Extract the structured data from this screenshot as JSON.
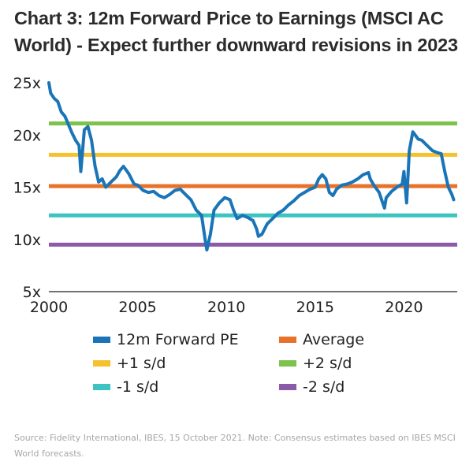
{
  "title": "Chart 3: 12m Forward Price to Earnings (MSCI AC World) - Expect further downward revisions in 2023",
  "source": "Source: Fidelity International, IBES, 15 October 2021. Note: Consensus estimates based on IBES MSCI World forecasts.",
  "chart_data": {
    "type": "line",
    "title": "Chart 3: 12m Forward Price to Earnings (MSCI AC World) - Expect further downward revisions in 2023",
    "xlabel": "",
    "ylabel": "",
    "xlim": [
      2000,
      2023
    ],
    "ylim": [
      5,
      25
    ],
    "x_ticks": [
      2000,
      2005,
      2010,
      2015,
      2020
    ],
    "x_tick_labels": [
      "2000",
      "2005",
      "2010",
      "2015",
      "2020"
    ],
    "y_ticks": [
      5,
      10,
      15,
      20,
      25
    ],
    "y_tick_labels": [
      "5x",
      "10x",
      "15x",
      "20x",
      "25x"
    ],
    "grid": false,
    "legend_position": "bottom",
    "series": [
      {
        "name": "12m Forward PE",
        "color": "#1a75b8",
        "x": [
          2000.0,
          2000.1,
          2000.3,
          2000.5,
          2000.7,
          2000.9,
          2001.1,
          2001.3,
          2001.5,
          2001.7,
          2001.8,
          2002.0,
          2002.2,
          2002.4,
          2002.6,
          2002.8,
          2003.0,
          2003.2,
          2003.5,
          2003.8,
          2004.0,
          2004.2,
          2004.5,
          2004.8,
          2005.0,
          2005.3,
          2005.6,
          2005.9,
          2006.2,
          2006.5,
          2006.8,
          2007.1,
          2007.4,
          2007.7,
          2008.0,
          2008.3,
          2008.6,
          2008.8,
          2008.9,
          2009.1,
          2009.3,
          2009.6,
          2009.9,
          2010.2,
          2010.4,
          2010.6,
          2010.9,
          2011.2,
          2011.5,
          2011.7,
          2011.8,
          2012.0,
          2012.3,
          2012.6,
          2012.9,
          2013.2,
          2013.5,
          2013.8,
          2014.1,
          2014.4,
          2014.7,
          2015.0,
          2015.2,
          2015.4,
          2015.6,
          2015.8,
          2016.0,
          2016.2,
          2016.5,
          2016.8,
          2017.1,
          2017.4,
          2017.7,
          2018.0,
          2018.1,
          2018.3,
          2018.6,
          2018.9,
          2019.0,
          2019.3,
          2019.6,
          2019.9,
          2020.0,
          2020.15,
          2020.3,
          2020.5,
          2020.8,
          2021.0,
          2021.3,
          2021.6,
          2021.9,
          2022.1,
          2022.3,
          2022.5,
          2022.7,
          2022.8
        ],
        "values": [
          25.0,
          24.0,
          23.5,
          23.2,
          22.2,
          21.8,
          21.0,
          20.2,
          19.5,
          19.0,
          16.5,
          20.5,
          20.8,
          19.5,
          17.0,
          15.5,
          15.8,
          15.0,
          15.5,
          16.0,
          16.6,
          17.0,
          16.3,
          15.3,
          15.2,
          14.7,
          14.5,
          14.6,
          14.2,
          14.0,
          14.3,
          14.7,
          14.8,
          14.3,
          13.8,
          12.8,
          12.3,
          10.0,
          9.0,
          10.5,
          12.8,
          13.5,
          14.0,
          13.8,
          12.8,
          12.0,
          12.3,
          12.1,
          11.8,
          11.0,
          10.3,
          10.5,
          11.5,
          12.0,
          12.5,
          12.8,
          13.3,
          13.7,
          14.2,
          14.5,
          14.8,
          15.0,
          15.8,
          16.2,
          15.8,
          14.5,
          14.2,
          14.8,
          15.2,
          15.3,
          15.5,
          15.8,
          16.2,
          16.4,
          15.8,
          15.2,
          14.5,
          13.0,
          14.0,
          14.6,
          15.0,
          15.3,
          16.5,
          13.5,
          18.5,
          20.3,
          19.6,
          19.5,
          19.0,
          18.5,
          18.3,
          18.2,
          16.5,
          15.0,
          14.3,
          13.8
        ]
      },
      {
        "name": "Average",
        "color": "#e8722a",
        "value": 15.1
      },
      {
        "name": "+1 s/d",
        "color": "#f5c12f",
        "value": 18.1
      },
      {
        "name": "+2 s/d",
        "color": "#7dc24b",
        "value": 21.1
      },
      {
        "name": "-1 s/d",
        "color": "#3ec4c0",
        "value": 12.3
      },
      {
        "name": "-2 s/d",
        "color": "#8b5aa8",
        "value": 9.5
      }
    ]
  }
}
